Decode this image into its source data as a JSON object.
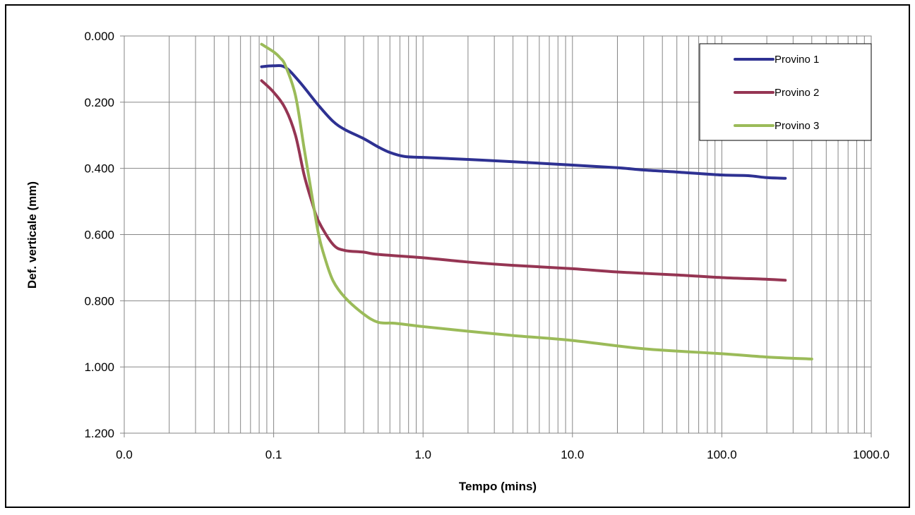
{
  "chart_data": {
    "type": "line",
    "xlabel": "Tempo (mins)",
    "ylabel": "Def. verticale (mm)",
    "x_scale": "log",
    "xlim": [
      0.01,
      1000
    ],
    "ylim": [
      0,
      1.2
    ],
    "y_inverted": true,
    "grid": true,
    "legend_position": "top-right",
    "x_ticks": [
      {
        "value": 0.01,
        "label": "0.0"
      },
      {
        "value": 0.1,
        "label": "0.1"
      },
      {
        "value": 1,
        "label": "1.0"
      },
      {
        "value": 10,
        "label": "10.0"
      },
      {
        "value": 100,
        "label": "100.0"
      },
      {
        "value": 1000,
        "label": "1000.0"
      }
    ],
    "y_ticks": [
      {
        "value": 0,
        "label": "0.000"
      },
      {
        "value": 0.2,
        "label": "0.200"
      },
      {
        "value": 0.4,
        "label": "0.400"
      },
      {
        "value": 0.6,
        "label": "0.600"
      },
      {
        "value": 0.8,
        "label": "0.800"
      },
      {
        "value": 1.0,
        "label": "1.000"
      },
      {
        "value": 1.2,
        "label": "1.200"
      }
    ],
    "series": [
      {
        "name": "Provino 1",
        "color": "#2E3192",
        "points": [
          [
            0.083,
            0.093
          ],
          [
            0.1,
            0.09
          ],
          [
            0.12,
            0.095
          ],
          [
            0.15,
            0.14
          ],
          [
            0.2,
            0.21
          ],
          [
            0.25,
            0.258
          ],
          [
            0.3,
            0.283
          ],
          [
            0.4,
            0.31
          ],
          [
            0.5,
            0.335
          ],
          [
            0.6,
            0.352
          ],
          [
            0.75,
            0.364
          ],
          [
            1,
            0.367
          ],
          [
            2,
            0.373
          ],
          [
            4,
            0.38
          ],
          [
            10,
            0.39
          ],
          [
            20,
            0.398
          ],
          [
            30,
            0.405
          ],
          [
            50,
            0.411
          ],
          [
            100,
            0.42
          ],
          [
            150,
            0.422
          ],
          [
            200,
            0.428
          ],
          [
            266,
            0.43
          ]
        ]
      },
      {
        "name": "Provino 2",
        "color": "#953553",
        "points": [
          [
            0.083,
            0.135
          ],
          [
            0.1,
            0.17
          ],
          [
            0.12,
            0.22
          ],
          [
            0.14,
            0.3
          ],
          [
            0.16,
            0.42
          ],
          [
            0.18,
            0.5
          ],
          [
            0.2,
            0.56
          ],
          [
            0.25,
            0.63
          ],
          [
            0.3,
            0.648
          ],
          [
            0.4,
            0.653
          ],
          [
            0.5,
            0.66
          ],
          [
            1,
            0.67
          ],
          [
            2,
            0.683
          ],
          [
            4,
            0.693
          ],
          [
            10,
            0.703
          ],
          [
            20,
            0.713
          ],
          [
            50,
            0.722
          ],
          [
            100,
            0.73
          ],
          [
            200,
            0.735
          ],
          [
            266,
            0.738
          ]
        ]
      },
      {
        "name": "Provino 3",
        "color": "#9BBB59",
        "points": [
          [
            0.083,
            0.025
          ],
          [
            0.1,
            0.048
          ],
          [
            0.11,
            0.065
          ],
          [
            0.12,
            0.09
          ],
          [
            0.14,
            0.18
          ],
          [
            0.16,
            0.34
          ],
          [
            0.18,
            0.48
          ],
          [
            0.2,
            0.6
          ],
          [
            0.22,
            0.67
          ],
          [
            0.25,
            0.74
          ],
          [
            0.3,
            0.79
          ],
          [
            0.4,
            0.84
          ],
          [
            0.5,
            0.865
          ],
          [
            0.65,
            0.868
          ],
          [
            1,
            0.878
          ],
          [
            2,
            0.892
          ],
          [
            4,
            0.905
          ],
          [
            10,
            0.92
          ],
          [
            30,
            0.945
          ],
          [
            100,
            0.96
          ],
          [
            200,
            0.97
          ],
          [
            400,
            0.976
          ]
        ]
      }
    ]
  }
}
